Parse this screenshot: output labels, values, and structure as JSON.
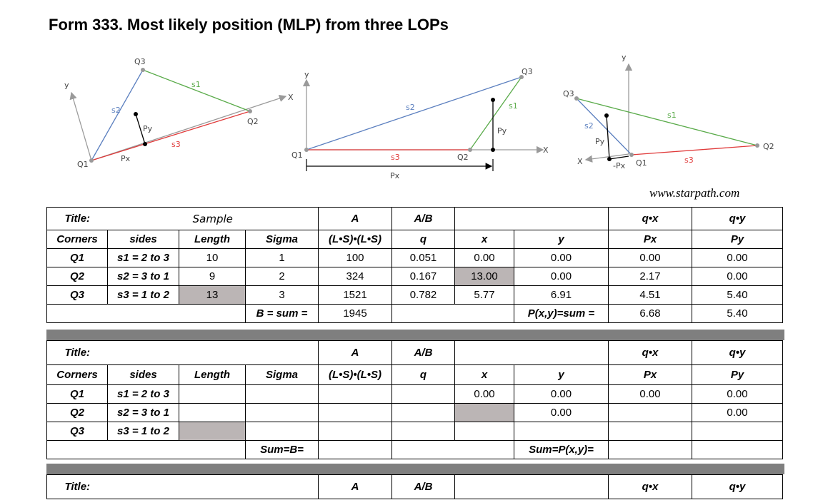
{
  "page_title": "Form 333. Most likely position (MLP) from three LOPs",
  "credit": "www.starpath.com",
  "diagram1": {
    "q1": "Q1",
    "q2": "Q2",
    "q3": "Q3",
    "s1": "s1",
    "s2": "s2",
    "s3": "s3",
    "y": "y",
    "x": "X",
    "px": "Px",
    "py": "Py"
  },
  "diagram2": {
    "q1": "Q1",
    "q2": "Q2",
    "q3": "Q3",
    "s1": "s1",
    "s2": "s2",
    "s3": "s3",
    "y": "y",
    "x": "X",
    "px": "Px",
    "py": "Py"
  },
  "diagram3": {
    "q1": "Q1",
    "q2": "Q2",
    "q3": "Q3",
    "s1": "s1",
    "s2": "s2",
    "s3": "s3",
    "y": "y",
    "x": "X",
    "px": "-Px",
    "py": "Py"
  },
  "table1": {
    "title_label": "Title:",
    "title_value": "Sample",
    "h1": {
      "A": "A",
      "AB": "A/B",
      "qx": "q•x",
      "qy": "q•y"
    },
    "h2": {
      "corners": "Corners",
      "sides": "sides",
      "length": "Length",
      "sigma": "Sigma",
      "ls": "(L•S)•(L•S)",
      "q": "q",
      "x": "x",
      "y": "y",
      "px": "Px",
      "py": "Py"
    },
    "rows": [
      {
        "corner": "Q1",
        "side": "s1 = 2 to 3",
        "length": "10",
        "sigma": "1",
        "a": "100",
        "q": "0.051",
        "x": "0.00",
        "y": "0.00",
        "qx": "0.00",
        "qy": "0.00"
      },
      {
        "corner": "Q2",
        "side": "s2 = 3 to 1",
        "length": "9",
        "sigma": "2",
        "a": "324",
        "q": "0.167",
        "x": "13.00",
        "y": "0.00",
        "qx": "2.17",
        "qy": "0.00"
      },
      {
        "corner": "Q3",
        "side": "s3 = 1 to 2",
        "length": "13",
        "sigma": "3",
        "a": "1521",
        "q": "0.782",
        "x": "5.77",
        "y": "6.91",
        "qx": "4.51",
        "qy": "5.40"
      }
    ],
    "sum": {
      "b_label": "B = sum =",
      "b_value": "1945",
      "p_label": "P(x,y)=sum =",
      "qx": "6.68",
      "qy": "5.40"
    }
  },
  "table2": {
    "title_label": "Title:",
    "h1": {
      "A": "A",
      "AB": "A/B",
      "qx": "q•x",
      "qy": "q•y"
    },
    "h2": {
      "corners": "Corners",
      "sides": "sides",
      "length": "Length",
      "sigma": "Sigma",
      "ls": "(L•S)•(L•S)",
      "q": "q",
      "x": "x",
      "y": "y",
      "px": "Px",
      "py": "Py"
    },
    "rows": [
      {
        "corner": "Q1",
        "side": "s1 = 2 to 3",
        "x": "0.00",
        "y": "0.00",
        "qx": "0.00",
        "qy": "0.00"
      },
      {
        "corner": "Q2",
        "side": "s2 = 3 to 1",
        "x": "",
        "y": "0.00",
        "qx": "",
        "qy": "0.00"
      },
      {
        "corner": "Q3",
        "side": "s3 = 1 to 2",
        "x": "",
        "y": "",
        "qx": "",
        "qy": ""
      }
    ],
    "sum": {
      "b_label": "Sum=B=",
      "p_label": "Sum=P(x,y)="
    }
  },
  "table3": {
    "title_label": "Title:",
    "h1": {
      "A": "A",
      "AB": "A/B",
      "qx": "q•x",
      "qy": "q•y"
    }
  },
  "colors": {
    "s1": "#5aab4a",
    "s2": "#5b7fbf",
    "s3": "#e03a3a",
    "axis": "#9a9a9a",
    "gray_cell": "#bbb5b5",
    "separator": "#7f7f7f"
  }
}
